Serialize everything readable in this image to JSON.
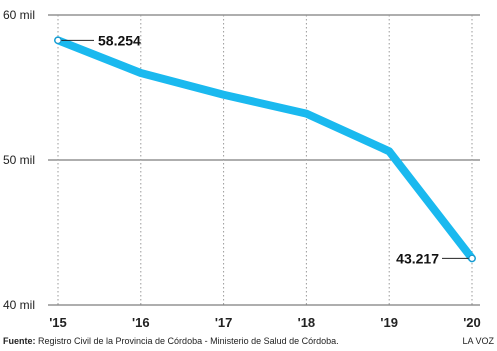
{
  "chart_data": {
    "type": "line",
    "x": [
      "'15",
      "'16",
      "'17",
      "'18",
      "'19",
      "'20"
    ],
    "values": [
      58254,
      56000,
      54500,
      53200,
      50600,
      43217
    ],
    "ylim": [
      40000,
      60000
    ],
    "yticks": [
      {
        "value": 40000,
        "label": "40 mil"
      },
      {
        "value": 50000,
        "label": "50 mil"
      },
      {
        "value": 60000,
        "label": "60 mil"
      }
    ],
    "data_labels": [
      {
        "index": 0,
        "text": "58.254"
      },
      {
        "index": 5,
        "text": "43.217"
      }
    ],
    "grid": true,
    "line_color": "#1ab9ef"
  },
  "footer": {
    "source_label": "Fuente:",
    "source_text": " Registro Civil de la Provincia de Córdoba - Ministerio de Salud de Córdoba.",
    "brand": "LA VOZ"
  }
}
